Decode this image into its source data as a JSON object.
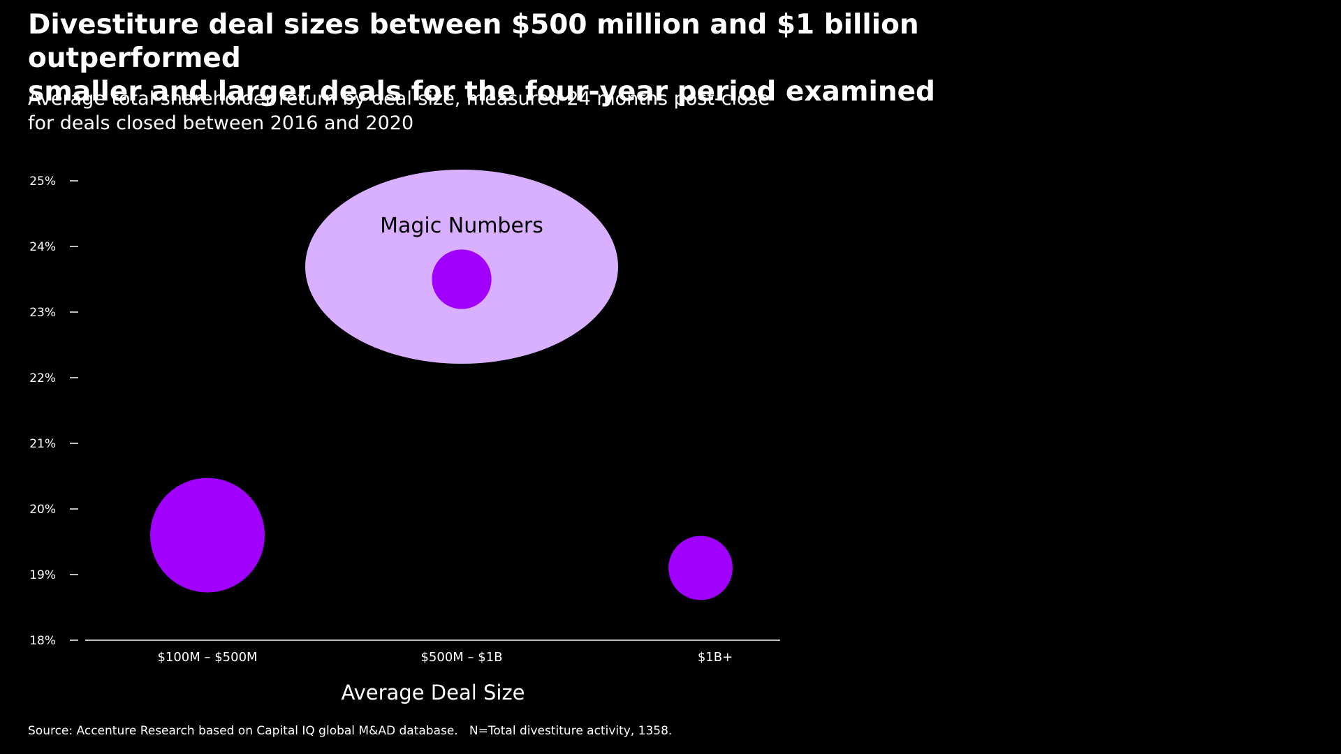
{
  "header": {
    "title_line1": "Divestiture deal sizes between $500 million and $1 billion outperformed",
    "title_line2": "smaller and larger deals for the four-year period examined",
    "subtitle_line1": "Average total shareholder return by deal size, measured 24 months post-close",
    "subtitle_line2": "for deals closed between 2016 and 2020"
  },
  "chart_data": {
    "type": "scatter",
    "xlabel": "Average Deal Size",
    "ylabel": "",
    "categories": [
      "$100M – $500M",
      "$500M – $1B",
      "$1B+"
    ],
    "y_ticks": [
      "18%",
      "19%",
      "20%",
      "21%",
      "22%",
      "23%",
      "24%",
      "25%"
    ],
    "ylim": [
      18,
      25
    ],
    "points": [
      {
        "category": "$100M – $500M",
        "y": 19.6,
        "relative_bubble_size": 1.0
      },
      {
        "category": "$500M – $1B",
        "y": 23.5,
        "relative_bubble_size": 0.52
      },
      {
        "category": "$1B+",
        "y": 19.1,
        "relative_bubble_size": 0.56
      }
    ],
    "annotation": {
      "label": "Magic Numbers",
      "category": "$500M – $1B"
    },
    "colors": {
      "bubble": "#A100FF",
      "highlight": "#D9AFFF",
      "background": "#000000",
      "text": "#FFFFFF"
    }
  },
  "footer": {
    "source": "Source: Accenture Research based on Capital IQ global M&AD database.   N=Total divestiture activity, 1358."
  }
}
